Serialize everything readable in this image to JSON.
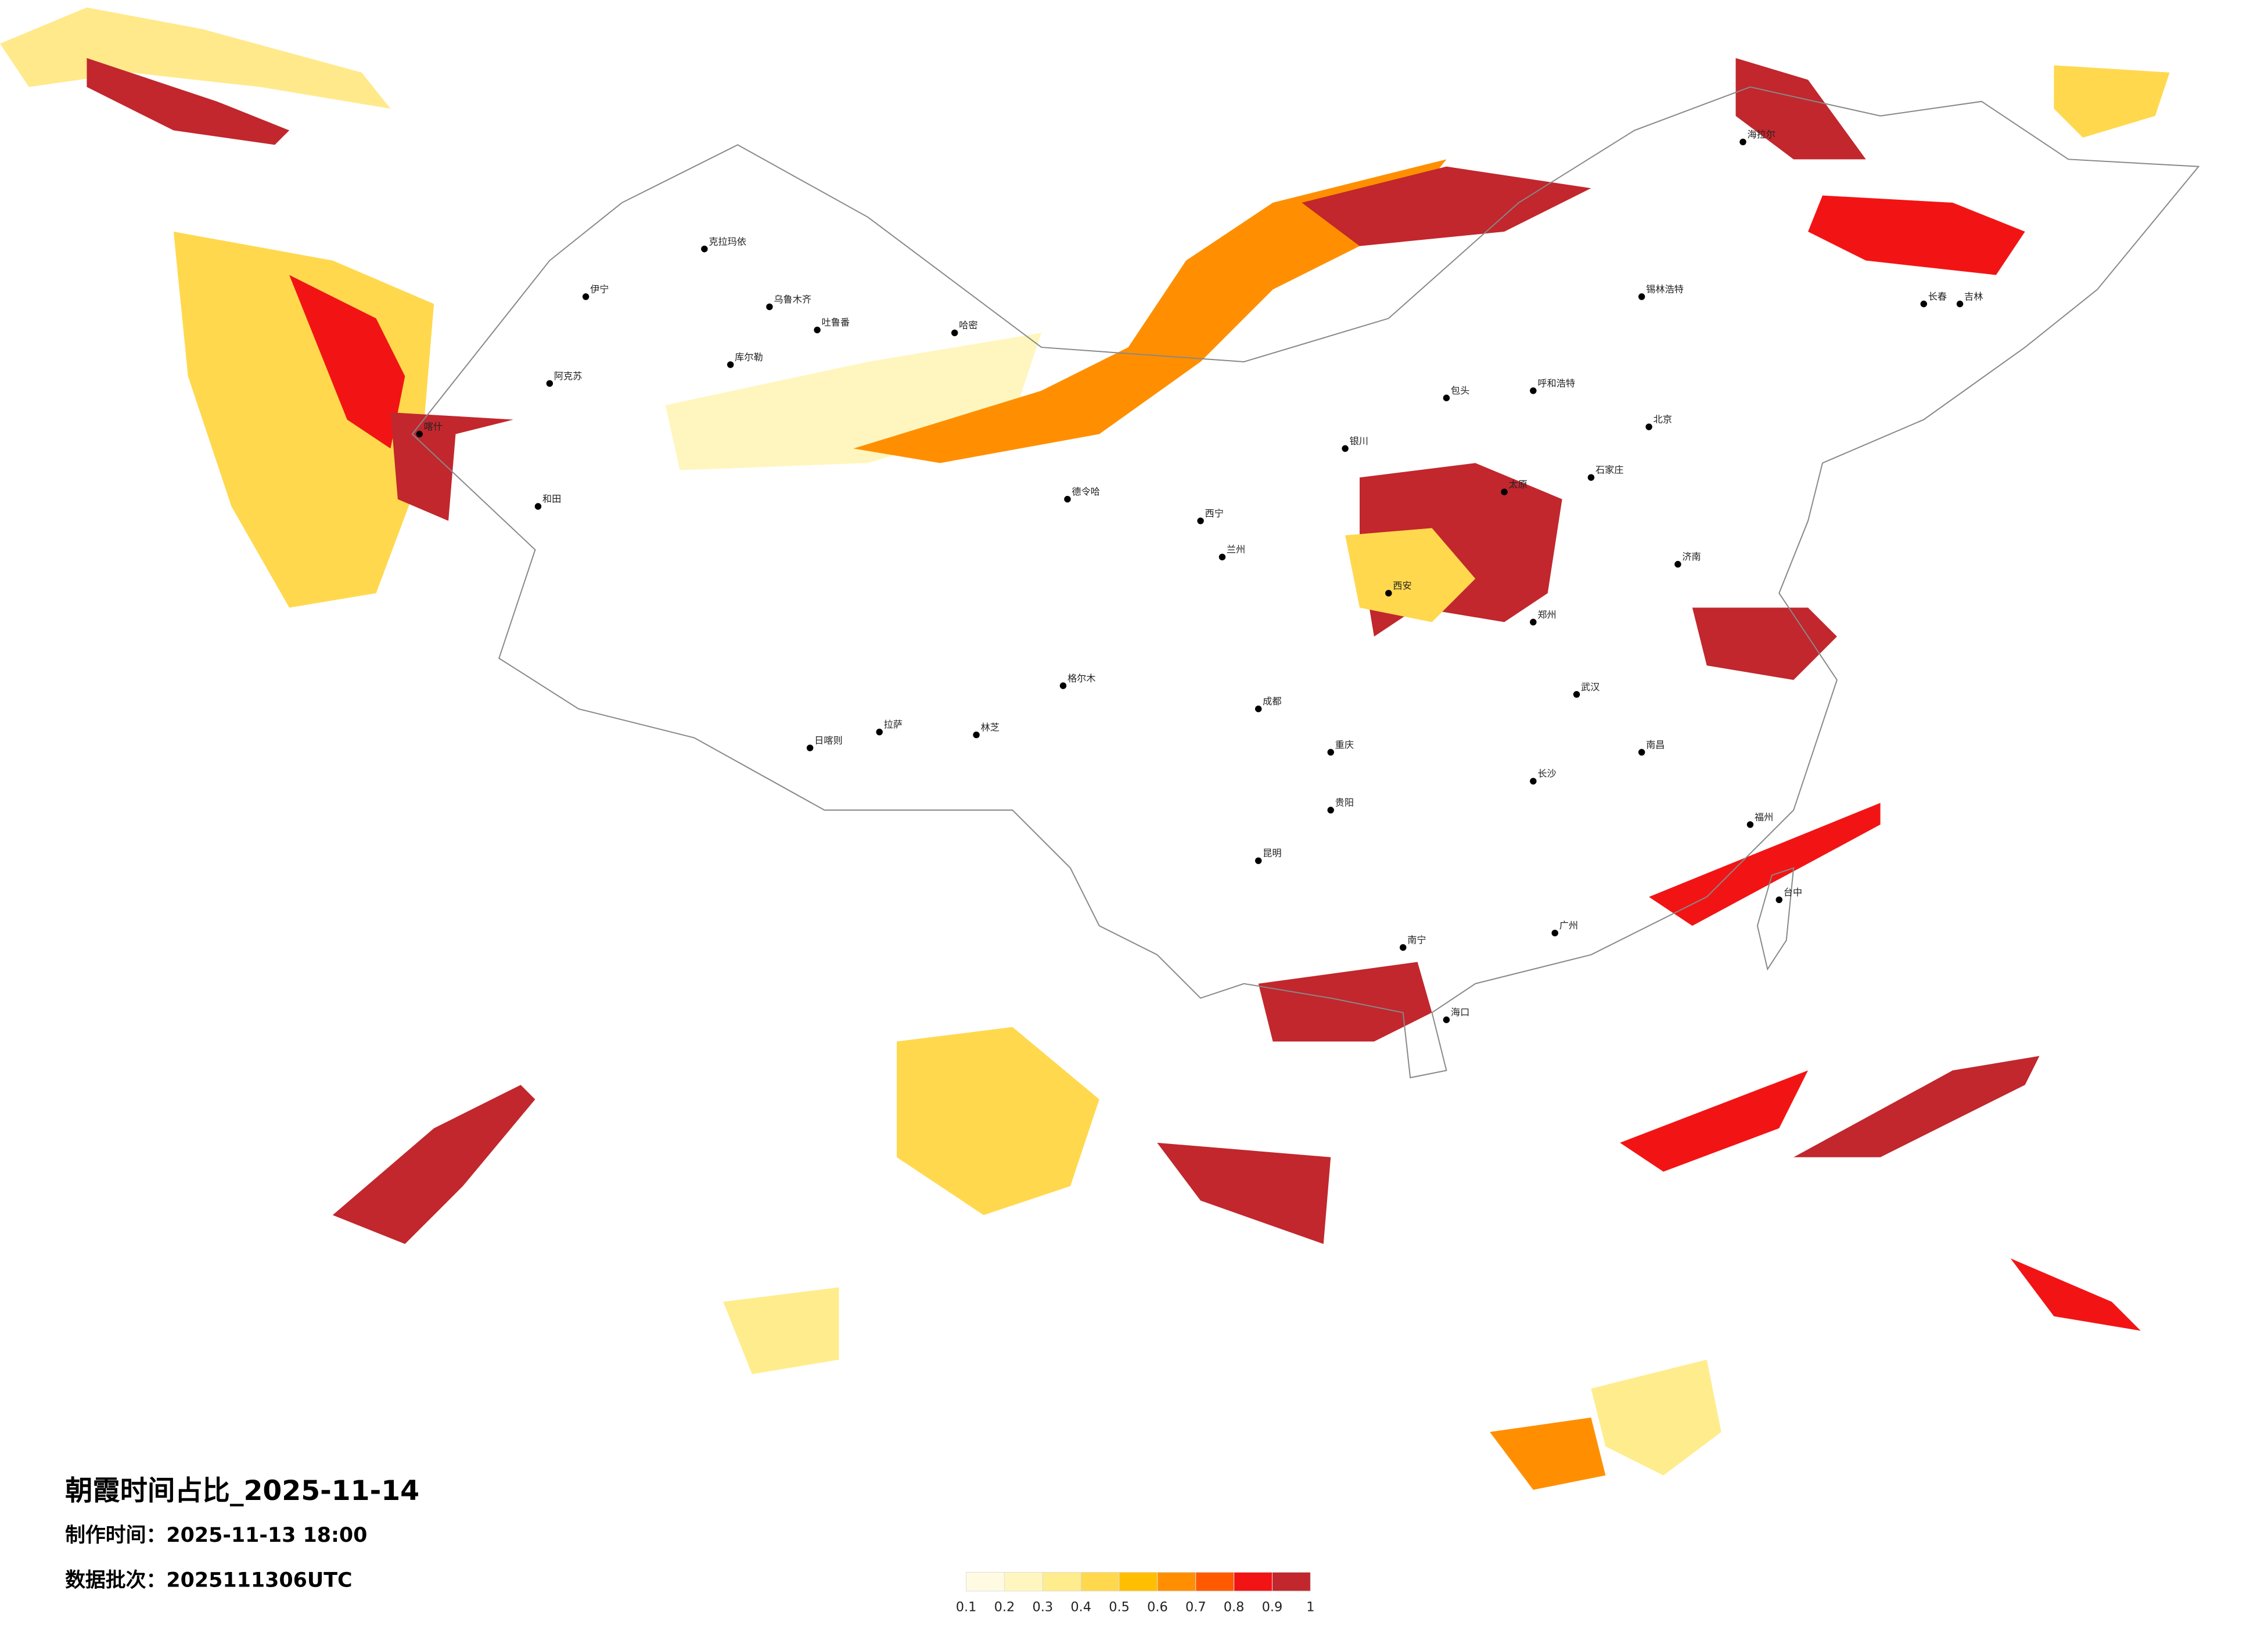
{
  "header": {
    "title": "朝霞时间占比_2025-11-14",
    "made": "制作时间：2025-11-13 18:00",
    "batch": "数据批次：2025111306UTC"
  },
  "legend": {
    "ticks": [
      0.1,
      0.2,
      0.3,
      0.4,
      0.5,
      0.6,
      0.7,
      0.8,
      0.9,
      1
    ],
    "colors": [
      "#fffbe3",
      "#fff6bf",
      "#ffec8c",
      "#ffd84d",
      "#ffbf00",
      "#ff8f00",
      "#ff5a00",
      "#f21414",
      "#c1272d"
    ]
  },
  "cities": [
    "克拉玛依",
    "伊宁",
    "乌鲁木齐",
    "阿克苏",
    "库尔勒",
    "和田",
    "哈密",
    "吐鲁番",
    "喀什",
    "德令哈",
    "格尔木",
    "拉萨",
    "日喀则",
    "林芝",
    "西宁",
    "兰州",
    "银川",
    "呼和浩特",
    "包头",
    "北京",
    "石家庄",
    "太原",
    "郑州",
    "西安",
    "武汉",
    "长沙",
    "南昌",
    "福州",
    "广州",
    "南宁",
    "昆明",
    "贵阳",
    "成都",
    "重庆",
    "海口",
    "长春",
    "吉林",
    "海拉尔",
    "锡林浩特",
    "济南",
    "台中"
  ]
}
